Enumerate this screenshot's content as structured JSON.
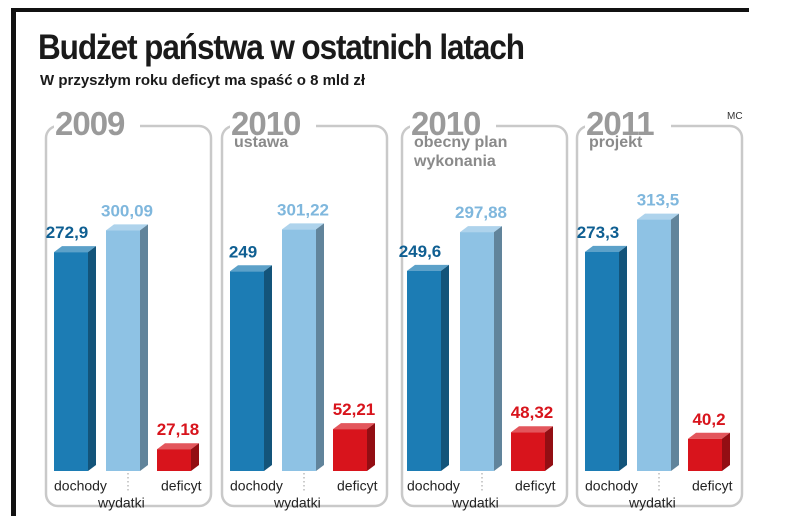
{
  "title": "Budżet państwa w ostatnich latach",
  "subtitle": "W przyszłym roku deficyt ma spaść o 8 mld zł",
  "credit": "MC",
  "colors": {
    "dochody": "#1c7cb4",
    "wydatki": "#8ec2e4",
    "deficyt": "#d8141c",
    "panel_border": "#c9c9c9",
    "year_text": "#9a9a9a"
  },
  "chart_data": {
    "type": "bar",
    "title": "Budżet państwa w ostatnich latach",
    "subtitle": "W przyszłym roku deficyt ma spaść o 8 mld zł",
    "unit": "mld zł",
    "series_names": [
      "dochody",
      "wydatki",
      "deficyt"
    ],
    "panels": [
      {
        "year": "2009",
        "subtitle": [],
        "values": {
          "dochody": "272,9",
          "wydatki": "300,09",
          "deficyt": "27,18"
        }
      },
      {
        "year": "2010",
        "subtitle": [
          "ustawa"
        ],
        "values": {
          "dochody": "249",
          "wydatki": "301,22",
          "deficyt": "52,21"
        }
      },
      {
        "year": "2010",
        "subtitle": [
          "obecny plan",
          "wykonania"
        ],
        "values": {
          "dochody": "249,6",
          "wydatki": "297,88",
          "deficyt": "48,32"
        }
      },
      {
        "year": "2011",
        "subtitle": [
          "projekt"
        ],
        "values": {
          "dochody": "273,3",
          "wydatki": "313,5",
          "deficyt": "40,2"
        }
      }
    ]
  }
}
